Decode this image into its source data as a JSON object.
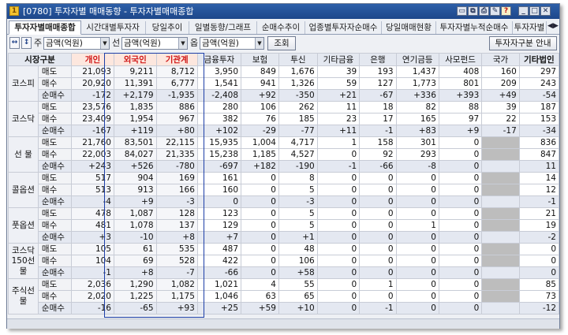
{
  "window": {
    "title": "[0780] 투자자별 매매동향 - 투자자별매매종합",
    "controls": [
      "window-mode-icon",
      "restore-icon",
      "print-icon",
      "tools-icon",
      "help-icon",
      "minimize-icon",
      "maximize-icon",
      "close-icon"
    ]
  },
  "tabs": [
    "투자자별매매종합",
    "시간대별투자자",
    "당일추이",
    "일별동향/그래프",
    "순매수추이",
    "업종별투자자순매수",
    "당일매매현황",
    "투자자별누적순매수",
    "투자자별"
  ],
  "toolbar": {
    "label_unit1": "주",
    "select1": "금액(억원)",
    "label_unit2": "선",
    "select2": "금액(억원)",
    "label_unit3": "옵",
    "select3": "금액(억원)",
    "query_button": "조회",
    "guide_button": "투자자구분 안내"
  },
  "table": {
    "headers": [
      "시장구분",
      "",
      "개인",
      "외국인",
      "기관계",
      "금융투자",
      "보험",
      "투신",
      "기타금융",
      "은행",
      "연기금등",
      "사모펀드",
      "국가",
      "기타법인"
    ],
    "groups": [
      {
        "name": "코스피",
        "rows": [
          {
            "label": "매도",
            "cells": [
              "21,093",
              "9,211",
              "8,712",
              "3,950",
              "849",
              "1,676",
              "39",
              "193",
              "1,437",
              "408",
              "160",
              "297"
            ]
          },
          {
            "label": "매수",
            "cells": [
              "20,920",
              "11,391",
              "6,777",
              "1,541",
              "941",
              "1,326",
              "59",
              "127",
              "1,773",
              "801",
              "209",
              "243"
            ]
          },
          {
            "label": "순매수",
            "cells": [
              "-172",
              "+2,179",
              "-1,935",
              "-2,408",
              "+92",
              "-350",
              "+21",
              "-67",
              "+336",
              "+393",
              "+49",
              "-54"
            ]
          }
        ]
      },
      {
        "name": "코스닥",
        "rows": [
          {
            "label": "매도",
            "cells": [
              "23,576",
              "1,835",
              "886",
              "280",
              "106",
              "262",
              "11",
              "18",
              "82",
              "88",
              "39",
              "187"
            ]
          },
          {
            "label": "매수",
            "cells": [
              "23,409",
              "1,954",
              "967",
              "382",
              "76",
              "185",
              "23",
              "17",
              "165",
              "97",
              "22",
              "153"
            ]
          },
          {
            "label": "순매수",
            "cells": [
              "-167",
              "+119",
              "+80",
              "+102",
              "-29",
              "-77",
              "+11",
              "-1",
              "+83",
              "+9",
              "-17",
              "-34"
            ]
          }
        ]
      },
      {
        "name": "선  물",
        "rows": [
          {
            "label": "매도",
            "cells": [
              "21,760",
              "83,501",
              "22,115",
              "15,935",
              "1,004",
              "4,717",
              "1",
              "158",
              "301",
              "0",
              "",
              "836"
            ]
          },
          {
            "label": "매수",
            "cells": [
              "22,003",
              "84,027",
              "21,335",
              "15,238",
              "1,185",
              "4,527",
              "0",
              "92",
              "293",
              "0",
              "",
              "847"
            ]
          },
          {
            "label": "순매수",
            "cells": [
              "+243",
              "+526",
              "-780",
              "-697",
              "+182",
              "-190",
              "-1",
              "-66",
              "-8",
              "0",
              "",
              "11"
            ]
          }
        ]
      },
      {
        "name": "콜옵션",
        "rows": [
          {
            "label": "매도",
            "cells": [
              "517",
              "904",
              "169",
              "161",
              "0",
              "8",
              "0",
              "0",
              "0",
              "0",
              "",
              "14"
            ]
          },
          {
            "label": "매수",
            "cells": [
              "513",
              "913",
              "166",
              "160",
              "0",
              "5",
              "0",
              "0",
              "0",
              "0",
              "",
              "12"
            ]
          },
          {
            "label": "순매수",
            "cells": [
              "-4",
              "+9",
              "-3",
              "0",
              "0",
              "-3",
              "0",
              "0",
              "0",
              "0",
              "",
              "-1"
            ]
          }
        ]
      },
      {
        "name": "풋옵션",
        "rows": [
          {
            "label": "매도",
            "cells": [
              "478",
              "1,087",
              "128",
              "123",
              "0",
              "5",
              "0",
              "0",
              "0",
              "0",
              "",
              "21"
            ]
          },
          {
            "label": "매수",
            "cells": [
              "481",
              "1,078",
              "137",
              "129",
              "0",
              "5",
              "0",
              "0",
              "1",
              "0",
              "",
              "19"
            ]
          },
          {
            "label": "순매수",
            "cells": [
              "+3",
              "-10",
              "+8",
              "+7",
              "0",
              "+1",
              "0",
              "0",
              "0",
              "0",
              "",
              "-2"
            ]
          }
        ]
      },
      {
        "name": "코스닥150선물",
        "rows": [
          {
            "label": "매도",
            "cells": [
              "105",
              "61",
              "535",
              "487",
              "0",
              "48",
              "0",
              "0",
              "0",
              "0",
              "",
              "0"
            ]
          },
          {
            "label": "매수",
            "cells": [
              "104",
              "69",
              "528",
              "422",
              "0",
              "106",
              "0",
              "0",
              "0",
              "0",
              "",
              "0"
            ]
          },
          {
            "label": "순매수",
            "cells": [
              "-1",
              "+8",
              "-7",
              "-66",
              "0",
              "+58",
              "0",
              "0",
              "0",
              "0",
              "",
              "0"
            ]
          }
        ]
      },
      {
        "name": "주식선물",
        "rows": [
          {
            "label": "매도",
            "cells": [
              "2,036",
              "1,290",
              "1,082",
              "1,021",
              "4",
              "55",
              "0",
              "1",
              "0",
              "0",
              "",
              "85"
            ]
          },
          {
            "label": "매수",
            "cells": [
              "2,020",
              "1,225",
              "1,175",
              "1,046",
              "63",
              "65",
              "0",
              "0",
              "0",
              "0",
              "",
              "73"
            ]
          },
          {
            "label": "순매수",
            "cells": [
              "-16",
              "-65",
              "+93",
              "+25",
              "+59",
              "+10",
              "0",
              "-1",
              "0",
              "0",
              "",
              "-12"
            ]
          }
        ]
      }
    ]
  },
  "colors": {
    "positive": "#e0160f",
    "negative": "#1a3fd0",
    "selection_border": "#1d3fa8",
    "title_bar": "#2d5fa8"
  }
}
